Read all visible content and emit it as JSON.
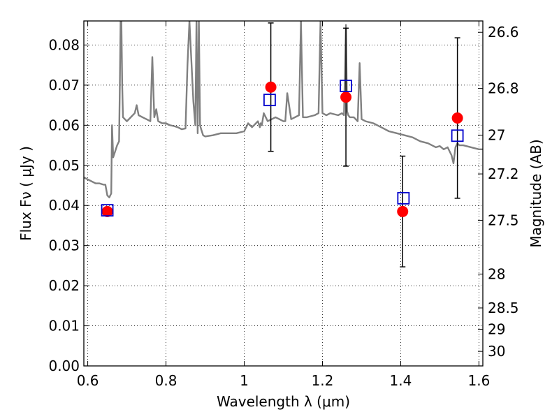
{
  "chart_data": {
    "type": "scatter",
    "title": "",
    "xlabel": "Wavelength  λ (μm)",
    "ylabel": "Flux  Fν  ( μJy )",
    "ylabel_right": "Magnitude (AB)",
    "xlim": [
      0.59,
      1.61
    ],
    "ylim": [
      0.0,
      0.086
    ],
    "grid": true,
    "x_ticks": [
      0.6,
      0.8,
      1.0,
      1.2,
      1.4,
      1.6
    ],
    "x_tick_labels": [
      "0.6",
      "0.8",
      "1",
      "1.2",
      "1.4",
      "1.6"
    ],
    "y_ticks": [
      0.0,
      0.01,
      0.02,
      0.03,
      0.04,
      0.05,
      0.06,
      0.07,
      0.08
    ],
    "y_tick_labels": [
      "0.00",
      "0.01",
      "0.02",
      "0.03",
      "0.04",
      "0.05",
      "0.06",
      "0.07",
      "0.08"
    ],
    "right_axis": {
      "scale": "AB magnitude",
      "tick_values": [
        26.6,
        26.8,
        27,
        27.2,
        27.5,
        28,
        28.5,
        29,
        30
      ],
      "tick_labels": [
        "26.6",
        "26.8",
        "27",
        "27.2",
        "27.5",
        "28",
        "28.5",
        "29",
        "30"
      ]
    },
    "series": [
      {
        "type": "line",
        "color": "#808080",
        "x": [
          0.59,
          0.6,
          0.62,
          0.63,
          0.64,
          0.645,
          0.65,
          0.655,
          0.66,
          0.662,
          0.665,
          0.67,
          0.675,
          0.68,
          0.682,
          0.684,
          0.686,
          0.688,
          0.69,
          0.7,
          0.71,
          0.72,
          0.725,
          0.73,
          0.74,
          0.75,
          0.76,
          0.765,
          0.77,
          0.775,
          0.78,
          0.79,
          0.8,
          0.81,
          0.82,
          0.83,
          0.84,
          0.85,
          0.855,
          0.86,
          0.865,
          0.87,
          0.875,
          0.878,
          0.881,
          0.884,
          0.887,
          0.89,
          0.895,
          0.9,
          0.92,
          0.94,
          0.96,
          0.98,
          1.0,
          1.01,
          1.02,
          1.03,
          1.035,
          1.04,
          1.042,
          1.045,
          1.05,
          1.06,
          1.08,
          1.09,
          1.1,
          1.105,
          1.11,
          1.12,
          1.14,
          1.145,
          1.15,
          1.16,
          1.18,
          1.19,
          1.195,
          1.2,
          1.21,
          1.22,
          1.24,
          1.25,
          1.255,
          1.26,
          1.263,
          1.266,
          1.27,
          1.28,
          1.29,
          1.295,
          1.3,
          1.31,
          1.33,
          1.35,
          1.37,
          1.39,
          1.41,
          1.43,
          1.45,
          1.47,
          1.49,
          1.5,
          1.51,
          1.52,
          1.53,
          1.535,
          1.54,
          1.545,
          1.55,
          1.56,
          1.58,
          1.6,
          1.61
        ],
        "y": [
          0.047,
          0.0465,
          0.0455,
          0.0455,
          0.0452,
          0.0452,
          0.0425,
          0.042,
          0.043,
          0.06,
          0.052,
          0.0535,
          0.055,
          0.056,
          0.07,
          0.086,
          0.086,
          0.07,
          0.062,
          0.061,
          0.062,
          0.063,
          0.065,
          0.0625,
          0.062,
          0.0615,
          0.061,
          0.077,
          0.062,
          0.064,
          0.061,
          0.0605,
          0.0605,
          0.06,
          0.0598,
          0.0595,
          0.059,
          0.0592,
          0.075,
          0.086,
          0.076,
          0.066,
          0.06,
          0.086,
          0.058,
          0.086,
          0.06,
          0.059,
          0.0575,
          0.0572,
          0.0575,
          0.058,
          0.058,
          0.058,
          0.0585,
          0.0605,
          0.0595,
          0.0605,
          0.061,
          0.0595,
          0.0605,
          0.06,
          0.063,
          0.061,
          0.062,
          0.0615,
          0.061,
          0.061,
          0.068,
          0.0615,
          0.0625,
          0.086,
          0.062,
          0.062,
          0.0625,
          0.063,
          0.086,
          0.063,
          0.0625,
          0.063,
          0.0625,
          0.063,
          0.0625,
          0.085,
          0.0635,
          0.0625,
          0.062,
          0.062,
          0.061,
          0.0755,
          0.0615,
          0.061,
          0.0605,
          0.0595,
          0.0585,
          0.058,
          0.0575,
          0.057,
          0.056,
          0.0555,
          0.0545,
          0.0548,
          0.054,
          0.0545,
          0.0525,
          0.0505,
          0.0545,
          0.0555,
          0.055,
          0.055,
          0.0545,
          0.054,
          0.054
        ]
      },
      {
        "name": "",
        "type": "scatter",
        "marker": "circle",
        "color": "#ff0000",
        "x": [
          0.65,
          1.068,
          1.26,
          1.405,
          1.545
        ],
        "y": [
          0.0385,
          0.0695,
          0.067,
          0.0385,
          0.0618
        ],
        "error": [
          null,
          0.016,
          0.0172,
          0.0138,
          0.02
        ]
      },
      {
        "name": "",
        "type": "scatter",
        "marker": "square",
        "color": "#0000cc",
        "x": [
          0.65,
          1.065,
          1.26,
          1.407,
          1.545
        ],
        "y": [
          0.0388,
          0.0663,
          0.0698,
          0.0418,
          0.0574
        ]
      }
    ]
  }
}
